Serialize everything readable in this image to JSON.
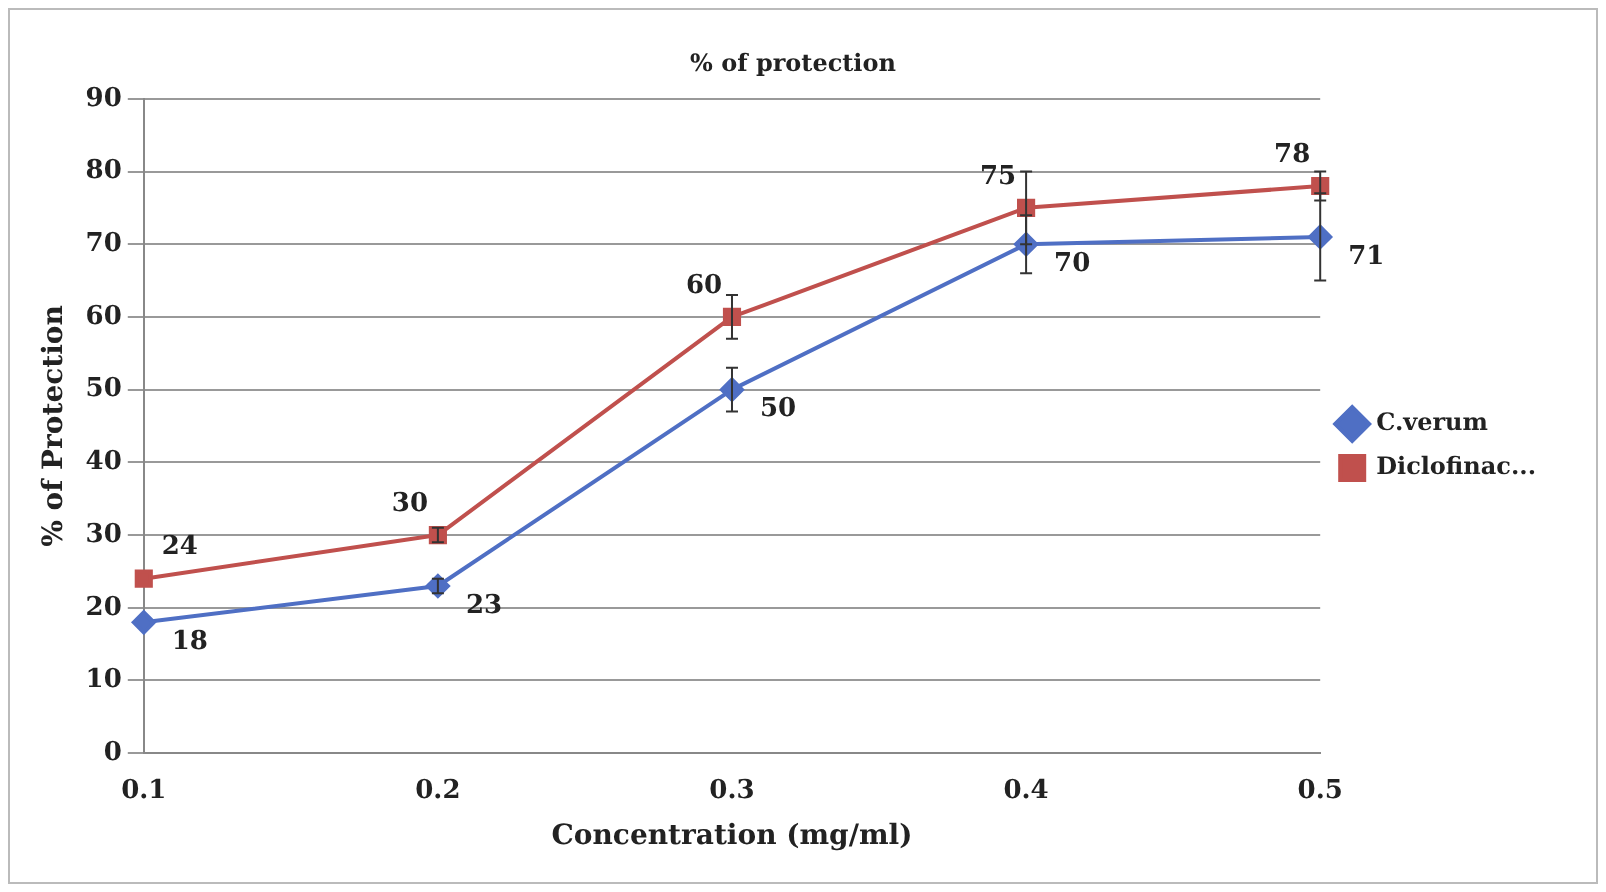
{
  "chart_data": {
    "type": "line",
    "title": "% of protection",
    "xlabel": "Concentration (mg/ml)",
    "ylabel": "% of Protection",
    "categories": [
      "0.1",
      "0.2",
      "0.3",
      "0.4",
      "0.5"
    ],
    "series": [
      {
        "name": "C.verum",
        "color": "#4f6fc4",
        "marker": "diamond",
        "values": [
          18,
          23,
          50,
          70,
          71
        ],
        "errors": [
          null,
          1,
          3,
          4,
          6
        ]
      },
      {
        "name": "Diclofinac...",
        "color": "#c0504d",
        "marker": "square",
        "values": [
          24,
          30,
          60,
          75,
          78
        ],
        "errors": [
          null,
          1,
          3,
          5,
          2
        ]
      }
    ],
    "ylim": [
      0,
      90
    ],
    "yticks": [
      0,
      10,
      20,
      30,
      40,
      50,
      60,
      70,
      80,
      90
    ],
    "grid": "y",
    "legend": "right",
    "data_labels": true
  }
}
